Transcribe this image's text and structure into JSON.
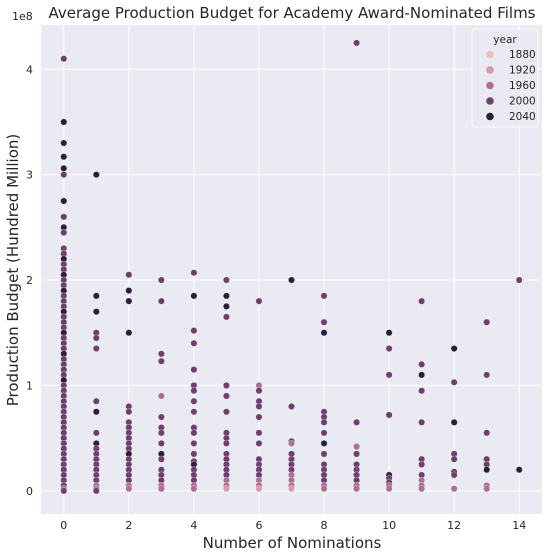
{
  "chart_data": {
    "type": "scatter",
    "title": "Average Production Budget for Academy Award-Nominated Films",
    "xlabel": "Number of Nominations",
    "ylabel": "Production Budget (Hundred Million)",
    "y_offset_label": "1e8",
    "xlim": [
      -0.7,
      14.7
    ],
    "ylim": [
      -0.22,
      4.42
    ],
    "x_ticks": [
      0,
      2,
      4,
      6,
      8,
      10,
      12,
      14
    ],
    "y_ticks": [
      0,
      1,
      2,
      3,
      4
    ],
    "grid": true,
    "hue": "year",
    "legend": {
      "title": "year",
      "position": "top-right",
      "entries": [
        {
          "label": "1880",
          "color": "#eac1bd"
        },
        {
          "label": "1920",
          "color": "#d39aa9"
        },
        {
          "label": "1960",
          "color": "#ab6f93"
        },
        {
          "label": "2000",
          "color": "#6e3f6e"
        },
        {
          "label": "2040",
          "color": "#2d1d3c"
        }
      ]
    },
    "points": [
      {
        "x": 0,
        "y": 4.1,
        "c": 3
      },
      {
        "x": 0,
        "y": 3.5,
        "c": 4
      },
      {
        "x": 0,
        "y": 3.3,
        "c": 4
      },
      {
        "x": 0,
        "y": 3.17,
        "c": 4
      },
      {
        "x": 0,
        "y": 3.06,
        "c": 4
      },
      {
        "x": 0,
        "y": 3.0,
        "c": 3
      },
      {
        "x": 0,
        "y": 2.75,
        "c": 4
      },
      {
        "x": 0,
        "y": 2.6,
        "c": 3
      },
      {
        "x": 0,
        "y": 2.5,
        "c": 4
      },
      {
        "x": 0,
        "y": 2.45,
        "c": 3
      },
      {
        "x": 0,
        "y": 2.3,
        "c": 3
      },
      {
        "x": 0,
        "y": 2.25,
        "c": 3
      },
      {
        "x": 0,
        "y": 2.2,
        "c": 4
      },
      {
        "x": 0,
        "y": 2.15,
        "c": 3
      },
      {
        "x": 0,
        "y": 2.1,
        "c": 3
      },
      {
        "x": 0,
        "y": 2.05,
        "c": 4
      },
      {
        "x": 0,
        "y": 2.0,
        "c": 3
      },
      {
        "x": 0,
        "y": 1.95,
        "c": 3
      },
      {
        "x": 0,
        "y": 1.9,
        "c": 4
      },
      {
        "x": 0,
        "y": 1.85,
        "c": 3
      },
      {
        "x": 0,
        "y": 1.8,
        "c": 3
      },
      {
        "x": 0,
        "y": 1.75,
        "c": 3
      },
      {
        "x": 0,
        "y": 1.7,
        "c": 4
      },
      {
        "x": 0,
        "y": 1.65,
        "c": 3
      },
      {
        "x": 0,
        "y": 1.6,
        "c": 3
      },
      {
        "x": 0,
        "y": 1.55,
        "c": 3
      },
      {
        "x": 0,
        "y": 1.5,
        "c": 4
      },
      {
        "x": 0,
        "y": 1.45,
        "c": 3
      },
      {
        "x": 0,
        "y": 1.4,
        "c": 3
      },
      {
        "x": 0,
        "y": 1.35,
        "c": 3
      },
      {
        "x": 0,
        "y": 1.3,
        "c": 4
      },
      {
        "x": 0,
        "y": 1.25,
        "c": 3
      },
      {
        "x": 0,
        "y": 1.2,
        "c": 3
      },
      {
        "x": 0,
        "y": 1.15,
        "c": 3
      },
      {
        "x": 0,
        "y": 1.1,
        "c": 3
      },
      {
        "x": 0,
        "y": 1.05,
        "c": 4
      },
      {
        "x": 0,
        "y": 1.0,
        "c": 3
      },
      {
        "x": 0,
        "y": 0.95,
        "c": 3
      },
      {
        "x": 0,
        "y": 0.9,
        "c": 3
      },
      {
        "x": 0,
        "y": 0.85,
        "c": 3
      },
      {
        "x": 0,
        "y": 0.8,
        "c": 3
      },
      {
        "x": 0,
        "y": 0.75,
        "c": 3
      },
      {
        "x": 0,
        "y": 0.7,
        "c": 3
      },
      {
        "x": 0,
        "y": 0.65,
        "c": 3
      },
      {
        "x": 0,
        "y": 0.6,
        "c": 3
      },
      {
        "x": 0,
        "y": 0.55,
        "c": 3
      },
      {
        "x": 0,
        "y": 0.5,
        "c": 3
      },
      {
        "x": 0,
        "y": 0.45,
        "c": 3
      },
      {
        "x": 0,
        "y": 0.4,
        "c": 3
      },
      {
        "x": 0,
        "y": 0.35,
        "c": 3
      },
      {
        "x": 0,
        "y": 0.3,
        "c": 3
      },
      {
        "x": 0,
        "y": 0.25,
        "c": 3
      },
      {
        "x": 0,
        "y": 0.2,
        "c": 3
      },
      {
        "x": 0,
        "y": 0.15,
        "c": 3
      },
      {
        "x": 0,
        "y": 0.1,
        "c": 3
      },
      {
        "x": 0,
        "y": 0.05,
        "c": 3
      },
      {
        "x": 0,
        "y": 0.02,
        "c": 2
      },
      {
        "x": 0,
        "y": 0.0,
        "c": 3
      },
      {
        "x": 1,
        "y": 3.0,
        "c": 4
      },
      {
        "x": 1,
        "y": 1.85,
        "c": 4
      },
      {
        "x": 1,
        "y": 1.7,
        "c": 4
      },
      {
        "x": 1,
        "y": 1.5,
        "c": 3
      },
      {
        "x": 1,
        "y": 1.45,
        "c": 3
      },
      {
        "x": 1,
        "y": 1.35,
        "c": 3
      },
      {
        "x": 1,
        "y": 0.85,
        "c": 3
      },
      {
        "x": 1,
        "y": 0.75,
        "c": 4
      },
      {
        "x": 1,
        "y": 0.55,
        "c": 3
      },
      {
        "x": 1,
        "y": 0.45,
        "c": 4
      },
      {
        "x": 1,
        "y": 0.4,
        "c": 3
      },
      {
        "x": 1,
        "y": 0.35,
        "c": 3
      },
      {
        "x": 1,
        "y": 0.3,
        "c": 3
      },
      {
        "x": 1,
        "y": 0.25,
        "c": 3
      },
      {
        "x": 1,
        "y": 0.2,
        "c": 3
      },
      {
        "x": 1,
        "y": 0.15,
        "c": 3
      },
      {
        "x": 1,
        "y": 0.1,
        "c": 3
      },
      {
        "x": 1,
        "y": 0.05,
        "c": 2
      },
      {
        "x": 1,
        "y": 0.02,
        "c": 2
      },
      {
        "x": 1,
        "y": 0.0,
        "c": 3
      },
      {
        "x": 2,
        "y": 2.05,
        "c": 3
      },
      {
        "x": 2,
        "y": 1.9,
        "c": 4
      },
      {
        "x": 2,
        "y": 1.8,
        "c": 4
      },
      {
        "x": 2,
        "y": 1.5,
        "c": 4
      },
      {
        "x": 2,
        "y": 0.8,
        "c": 3
      },
      {
        "x": 2,
        "y": 0.75,
        "c": 3
      },
      {
        "x": 2,
        "y": 0.65,
        "c": 3
      },
      {
        "x": 2,
        "y": 0.6,
        "c": 3
      },
      {
        "x": 2,
        "y": 0.55,
        "c": 3
      },
      {
        "x": 2,
        "y": 0.5,
        "c": 3
      },
      {
        "x": 2,
        "y": 0.45,
        "c": 3
      },
      {
        "x": 2,
        "y": 0.4,
        "c": 3
      },
      {
        "x": 2,
        "y": 0.35,
        "c": 4
      },
      {
        "x": 2,
        "y": 0.3,
        "c": 3
      },
      {
        "x": 2,
        "y": 0.25,
        "c": 3
      },
      {
        "x": 2,
        "y": 0.2,
        "c": 3
      },
      {
        "x": 2,
        "y": 0.15,
        "c": 3
      },
      {
        "x": 2,
        "y": 0.1,
        "c": 3
      },
      {
        "x": 2,
        "y": 0.05,
        "c": 2
      },
      {
        "x": 2,
        "y": 0.02,
        "c": 2
      },
      {
        "x": 3,
        "y": 2.0,
        "c": 3
      },
      {
        "x": 3,
        "y": 1.8,
        "c": 3
      },
      {
        "x": 3,
        "y": 1.3,
        "c": 3
      },
      {
        "x": 3,
        "y": 1.23,
        "c": 3
      },
      {
        "x": 3,
        "y": 0.9,
        "c": 2
      },
      {
        "x": 3,
        "y": 0.7,
        "c": 3
      },
      {
        "x": 3,
        "y": 0.6,
        "c": 3
      },
      {
        "x": 3,
        "y": 0.55,
        "c": 3
      },
      {
        "x": 3,
        "y": 0.45,
        "c": 3
      },
      {
        "x": 3,
        "y": 0.35,
        "c": 4
      },
      {
        "x": 3,
        "y": 0.3,
        "c": 3
      },
      {
        "x": 3,
        "y": 0.2,
        "c": 3
      },
      {
        "x": 3,
        "y": 0.15,
        "c": 3
      },
      {
        "x": 3,
        "y": 0.1,
        "c": 3
      },
      {
        "x": 3,
        "y": 0.05,
        "c": 2
      },
      {
        "x": 3,
        "y": 0.02,
        "c": 2
      },
      {
        "x": 4,
        "y": 2.07,
        "c": 3
      },
      {
        "x": 4,
        "y": 1.85,
        "c": 4
      },
      {
        "x": 4,
        "y": 1.52,
        "c": 3
      },
      {
        "x": 4,
        "y": 1.4,
        "c": 3
      },
      {
        "x": 4,
        "y": 1.15,
        "c": 3
      },
      {
        "x": 4,
        "y": 1.0,
        "c": 3
      },
      {
        "x": 4,
        "y": 0.95,
        "c": 3
      },
      {
        "x": 4,
        "y": 0.85,
        "c": 3
      },
      {
        "x": 4,
        "y": 0.75,
        "c": 3
      },
      {
        "x": 4,
        "y": 0.6,
        "c": 3
      },
      {
        "x": 4,
        "y": 0.55,
        "c": 3
      },
      {
        "x": 4,
        "y": 0.45,
        "c": 3
      },
      {
        "x": 4,
        "y": 0.35,
        "c": 3
      },
      {
        "x": 4,
        "y": 0.28,
        "c": 3
      },
      {
        "x": 4,
        "y": 0.25,
        "c": 4
      },
      {
        "x": 4,
        "y": 0.2,
        "c": 3
      },
      {
        "x": 4,
        "y": 0.15,
        "c": 3
      },
      {
        "x": 4,
        "y": 0.1,
        "c": 3
      },
      {
        "x": 4,
        "y": 0.05,
        "c": 2
      },
      {
        "x": 4,
        "y": 0.02,
        "c": 2
      },
      {
        "x": 5,
        "y": 2.0,
        "c": 3
      },
      {
        "x": 5,
        "y": 1.85,
        "c": 4
      },
      {
        "x": 5,
        "y": 1.75,
        "c": 4
      },
      {
        "x": 5,
        "y": 1.65,
        "c": 3
      },
      {
        "x": 5,
        "y": 1.0,
        "c": 3
      },
      {
        "x": 5,
        "y": 0.9,
        "c": 3
      },
      {
        "x": 5,
        "y": 0.75,
        "c": 3
      },
      {
        "x": 5,
        "y": 0.55,
        "c": 3
      },
      {
        "x": 5,
        "y": 0.5,
        "c": 3
      },
      {
        "x": 5,
        "y": 0.45,
        "c": 3
      },
      {
        "x": 5,
        "y": 0.35,
        "c": 3
      },
      {
        "x": 5,
        "y": 0.3,
        "c": 3
      },
      {
        "x": 5,
        "y": 0.25,
        "c": 3
      },
      {
        "x": 5,
        "y": 0.2,
        "c": 3
      },
      {
        "x": 5,
        "y": 0.15,
        "c": 3
      },
      {
        "x": 5,
        "y": 0.1,
        "c": 2
      },
      {
        "x": 5,
        "y": 0.05,
        "c": 2
      },
      {
        "x": 5,
        "y": 0.02,
        "c": 1
      },
      {
        "x": 6,
        "y": 1.8,
        "c": 3
      },
      {
        "x": 6,
        "y": 1.0,
        "c": 2
      },
      {
        "x": 6,
        "y": 0.95,
        "c": 3
      },
      {
        "x": 6,
        "y": 0.85,
        "c": 3
      },
      {
        "x": 6,
        "y": 0.8,
        "c": 3
      },
      {
        "x": 6,
        "y": 0.7,
        "c": 3
      },
      {
        "x": 6,
        "y": 0.55,
        "c": 3
      },
      {
        "x": 6,
        "y": 0.45,
        "c": 3
      },
      {
        "x": 6,
        "y": 0.3,
        "c": 3
      },
      {
        "x": 6,
        "y": 0.25,
        "c": 3
      },
      {
        "x": 6,
        "y": 0.2,
        "c": 3
      },
      {
        "x": 6,
        "y": 0.15,
        "c": 3
      },
      {
        "x": 6,
        "y": 0.1,
        "c": 2
      },
      {
        "x": 6,
        "y": 0.05,
        "c": 2
      },
      {
        "x": 6,
        "y": 0.02,
        "c": 1
      },
      {
        "x": 7,
        "y": 2.0,
        "c": 4
      },
      {
        "x": 7,
        "y": 0.8,
        "c": 3
      },
      {
        "x": 7,
        "y": 0.47,
        "c": 3
      },
      {
        "x": 7,
        "y": 0.45,
        "c": 2
      },
      {
        "x": 7,
        "y": 0.35,
        "c": 3
      },
      {
        "x": 7,
        "y": 0.3,
        "c": 3
      },
      {
        "x": 7,
        "y": 0.25,
        "c": 3
      },
      {
        "x": 7,
        "y": 0.2,
        "c": 3
      },
      {
        "x": 7,
        "y": 0.15,
        "c": 2
      },
      {
        "x": 7,
        "y": 0.1,
        "c": 2
      },
      {
        "x": 7,
        "y": 0.05,
        "c": 2
      },
      {
        "x": 7,
        "y": 0.02,
        "c": 1
      },
      {
        "x": 8,
        "y": 1.85,
        "c": 3
      },
      {
        "x": 8,
        "y": 1.6,
        "c": 3
      },
      {
        "x": 8,
        "y": 1.5,
        "c": 4
      },
      {
        "x": 8,
        "y": 0.75,
        "c": 3
      },
      {
        "x": 8,
        "y": 0.7,
        "c": 3
      },
      {
        "x": 8,
        "y": 0.65,
        "c": 3
      },
      {
        "x": 8,
        "y": 0.55,
        "c": 3
      },
      {
        "x": 8,
        "y": 0.45,
        "c": 4
      },
      {
        "x": 8,
        "y": 0.35,
        "c": 3
      },
      {
        "x": 8,
        "y": 0.25,
        "c": 3
      },
      {
        "x": 8,
        "y": 0.2,
        "c": 3
      },
      {
        "x": 8,
        "y": 0.15,
        "c": 3
      },
      {
        "x": 8,
        "y": 0.1,
        "c": 3
      },
      {
        "x": 8,
        "y": 0.05,
        "c": 2
      },
      {
        "x": 8,
        "y": 0.02,
        "c": 2
      },
      {
        "x": 9,
        "y": 4.25,
        "c": 3
      },
      {
        "x": 9,
        "y": 0.65,
        "c": 3
      },
      {
        "x": 9,
        "y": 0.42,
        "c": 2
      },
      {
        "x": 9,
        "y": 0.35,
        "c": 3
      },
      {
        "x": 9,
        "y": 0.25,
        "c": 3
      },
      {
        "x": 9,
        "y": 0.2,
        "c": 3
      },
      {
        "x": 9,
        "y": 0.15,
        "c": 3
      },
      {
        "x": 9,
        "y": 0.1,
        "c": 3
      },
      {
        "x": 9,
        "y": 0.05,
        "c": 2
      },
      {
        "x": 9,
        "y": 0.02,
        "c": 2
      },
      {
        "x": 10,
        "y": 1.5,
        "c": 4
      },
      {
        "x": 10,
        "y": 1.35,
        "c": 3
      },
      {
        "x": 10,
        "y": 1.1,
        "c": 3
      },
      {
        "x": 10,
        "y": 0.72,
        "c": 3
      },
      {
        "x": 10,
        "y": 0.15,
        "c": 4
      },
      {
        "x": 10,
        "y": 0.12,
        "c": 3
      },
      {
        "x": 10,
        "y": 0.08,
        "c": 3
      },
      {
        "x": 10,
        "y": 0.05,
        "c": 2
      },
      {
        "x": 10,
        "y": 0.02,
        "c": 2
      },
      {
        "x": 11,
        "y": 1.8,
        "c": 3
      },
      {
        "x": 11,
        "y": 1.2,
        "c": 3
      },
      {
        "x": 11,
        "y": 1.1,
        "c": 4
      },
      {
        "x": 11,
        "y": 0.95,
        "c": 3
      },
      {
        "x": 11,
        "y": 0.65,
        "c": 3
      },
      {
        "x": 11,
        "y": 0.3,
        "c": 3
      },
      {
        "x": 11,
        "y": 0.25,
        "c": 3
      },
      {
        "x": 11,
        "y": 0.15,
        "c": 3
      },
      {
        "x": 11,
        "y": 0.1,
        "c": 2
      },
      {
        "x": 11,
        "y": 0.05,
        "c": 2
      },
      {
        "x": 11,
        "y": 0.02,
        "c": 2
      },
      {
        "x": 12,
        "y": 1.35,
        "c": 4
      },
      {
        "x": 12,
        "y": 1.03,
        "c": 3
      },
      {
        "x": 12,
        "y": 0.65,
        "c": 4
      },
      {
        "x": 12,
        "y": 0.35,
        "c": 3
      },
      {
        "x": 12,
        "y": 0.3,
        "c": 3
      },
      {
        "x": 12,
        "y": 0.18,
        "c": 3
      },
      {
        "x": 12,
        "y": 0.15,
        "c": 3
      },
      {
        "x": 12,
        "y": 0.02,
        "c": 2
      },
      {
        "x": 13,
        "y": 1.6,
        "c": 3
      },
      {
        "x": 13,
        "y": 1.1,
        "c": 3
      },
      {
        "x": 13,
        "y": 0.55,
        "c": 3
      },
      {
        "x": 13,
        "y": 0.3,
        "c": 3
      },
      {
        "x": 13,
        "y": 0.25,
        "c": 3
      },
      {
        "x": 13,
        "y": 0.2,
        "c": 4
      },
      {
        "x": 13,
        "y": 0.05,
        "c": 2
      },
      {
        "x": 13,
        "y": 0.02,
        "c": 2
      },
      {
        "x": 14,
        "y": 2.0,
        "c": 3
      },
      {
        "x": 14,
        "y": 0.2,
        "c": 4
      }
    ]
  }
}
